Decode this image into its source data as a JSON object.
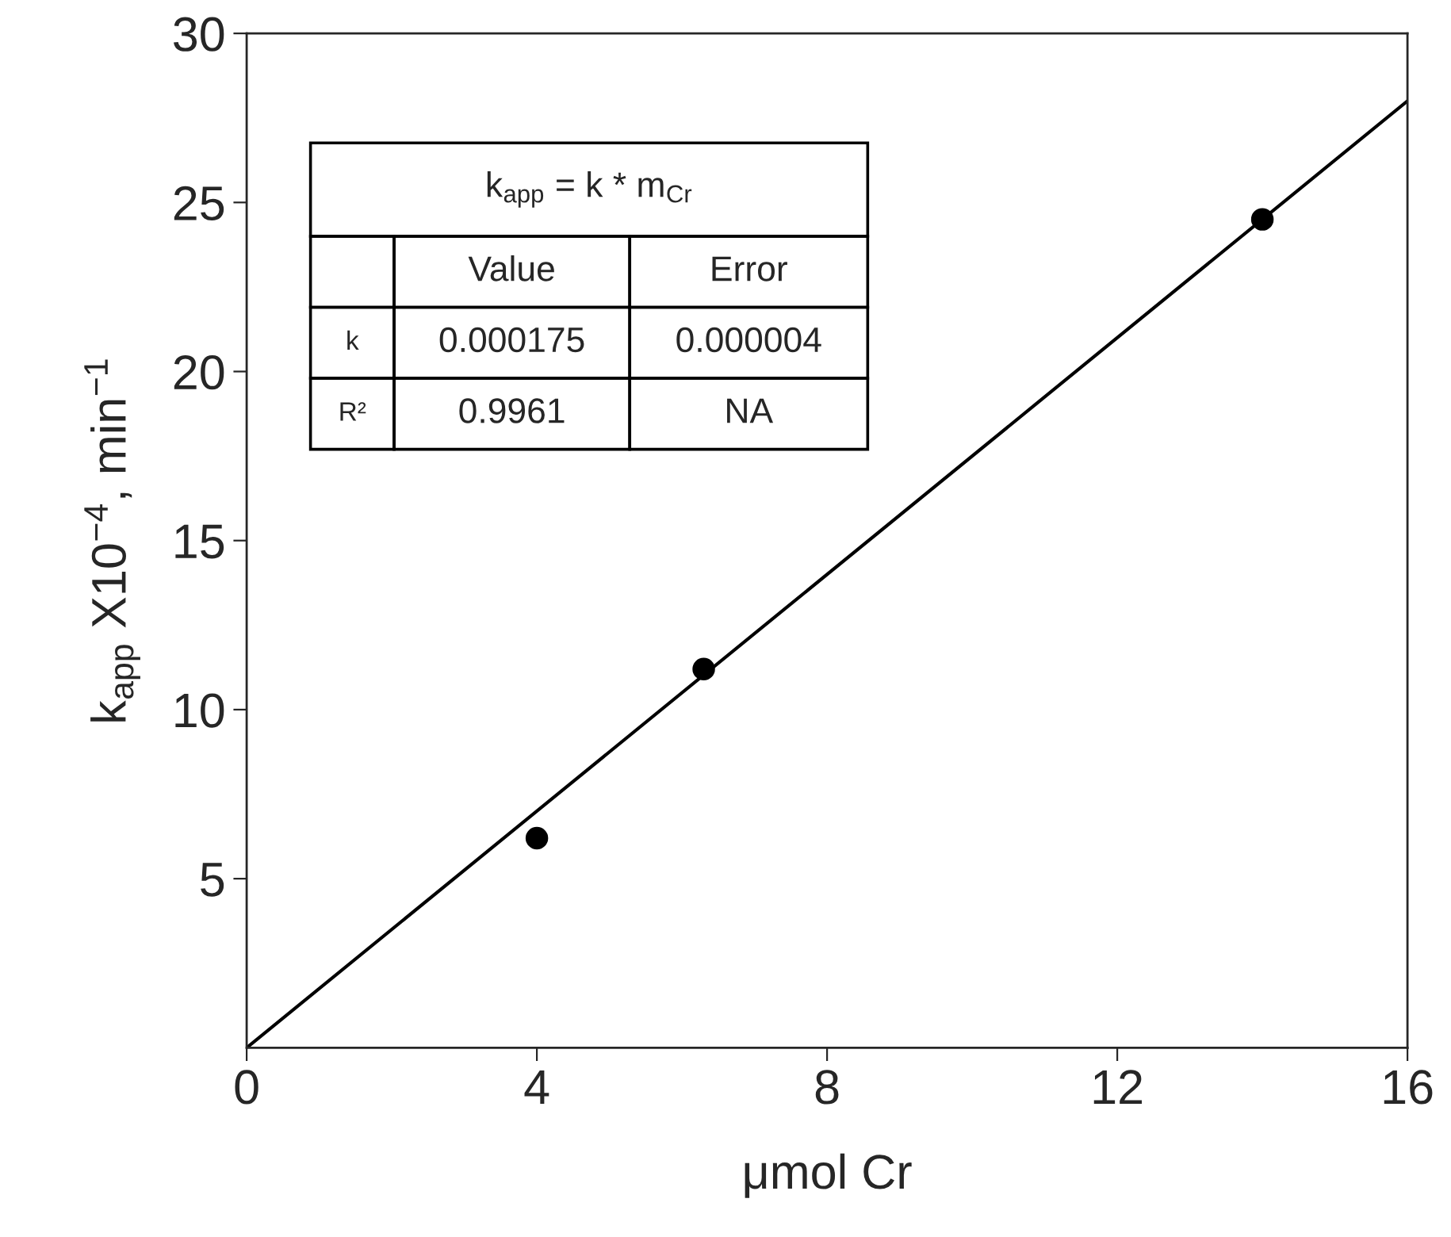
{
  "chart_data": {
    "type": "scatter",
    "xlabel": "μmol Cr",
    "ylabel": "k$_{app}$ X10$^{−4}$, min$^{−1}$",
    "xlim": [
      0,
      16
    ],
    "xticks": [
      0,
      4,
      8,
      12,
      16
    ],
    "ylim": [
      0,
      30
    ],
    "yticks": [
      5,
      10,
      15,
      20,
      25,
      30
    ],
    "grid": false,
    "legend": false,
    "marker": "circle",
    "series": [
      {
        "color": "#000000",
        "x": [
          4,
          6.3,
          14
        ],
        "values": [
          6.2,
          11.2,
          24.5
        ]
      },
      {
        "type": "line",
        "color": "#000000",
        "x": [
          0,
          16
        ],
        "values": [
          0,
          28
        ],
        "line_style": "solid",
        "marker": "none"
      }
    ],
    "annotations": [
      "k$_{app}$ = k * m$_{Cr}$",
      "Value",
      "Error",
      "k",
      "0.000175",
      "0.000004",
      "R²",
      "0.9961",
      "NA"
    ]
  }
}
